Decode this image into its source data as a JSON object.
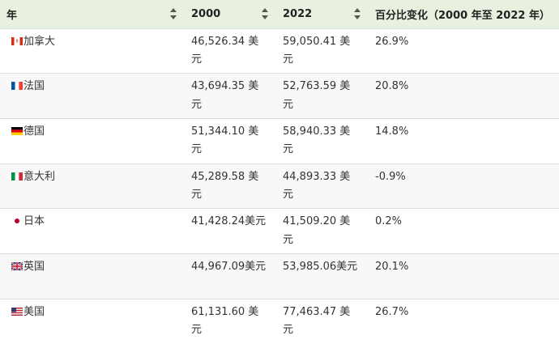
{
  "table": {
    "headers": [
      "年",
      "2000",
      "2022",
      "百分比变化（2000 年至 2022 年）"
    ],
    "rows": [
      {
        "country": "加拿大",
        "flag": "canada-flag-icon",
        "v2000": "46,526.34 美元",
        "v2022": "59,050.41 美元",
        "change": "26.9%"
      },
      {
        "country": "法国",
        "flag": "france-flag-icon",
        "v2000": "43,694.35 美元",
        "v2022": "52,763.59 美元",
        "change": "20.8%"
      },
      {
        "country": "德国",
        "flag": "germany-flag-icon",
        "v2000": "51,344.10 美元",
        "v2022": "58,940.33 美元",
        "change": "14.8%"
      },
      {
        "country": "意大利",
        "flag": "italy-flag-icon",
        "v2000": "45,289.58 美元",
        "v2022": "44,893.33 美元",
        "change": "-0.9%"
      },
      {
        "country": "日本",
        "flag": "japan-flag-icon",
        "v2000": "41,428.24美元",
        "v2022": "41,509.20 美元",
        "change": "0.2%"
      },
      {
        "country": "英国",
        "flag": "uk-flag-icon",
        "v2000": "44,967.09美元",
        "v2022": "53,985.06美元",
        "change": "20.1%"
      },
      {
        "country": "美国",
        "flag": "usa-flag-icon",
        "v2000": "61,131.60 美元",
        "v2022": "77,463.47 美元",
        "change": "26.7%"
      }
    ]
  },
  "colors": {
    "header_bg": "#e8f0df",
    "row_alt_bg": "#f8f8f8",
    "border": "#dcdcdc"
  }
}
